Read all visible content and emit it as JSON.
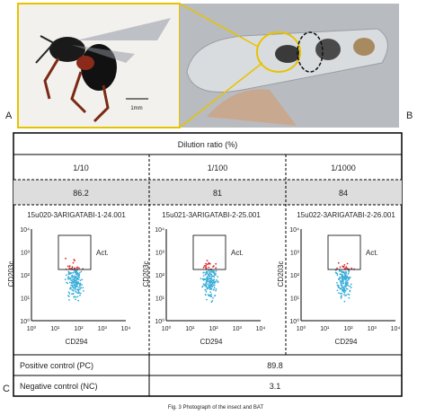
{
  "panel_labels": [
    "A",
    "B",
    "C"
  ],
  "photo_a": {
    "scale_bar": "1mm"
  },
  "table": {
    "header": "Dilution ratio (%)",
    "ratios": [
      "1/10",
      "1/100",
      "1/1000"
    ],
    "values": [
      86.2,
      81,
      84
    ]
  },
  "plots": [
    {
      "title": "15u020-3ARIGATABI-1-24.001",
      "y_label": "CD203c",
      "x_label": "CD294",
      "gate_label": "Act."
    },
    {
      "title": "15u021-3ARIGATABI-2-25.001",
      "y_label": "CD203c",
      "x_label": "CD294",
      "gate_label": "Act."
    },
    {
      "title": "15u022-3ARIGATABI-2-26.001",
      "y_label": "CD203c",
      "x_label": "CD294",
      "gate_label": "Act."
    }
  ],
  "axis_ticks": [
    "10⁰",
    "10¹",
    "10²",
    "10³",
    "10⁴"
  ],
  "controls": [
    {
      "label": "Positive control (PC)",
      "value": 89.8
    },
    {
      "label": "Negative control (NC)",
      "value": 3.1
    }
  ],
  "caption": "Fig. 3   Photograph of the insect and BAT"
}
